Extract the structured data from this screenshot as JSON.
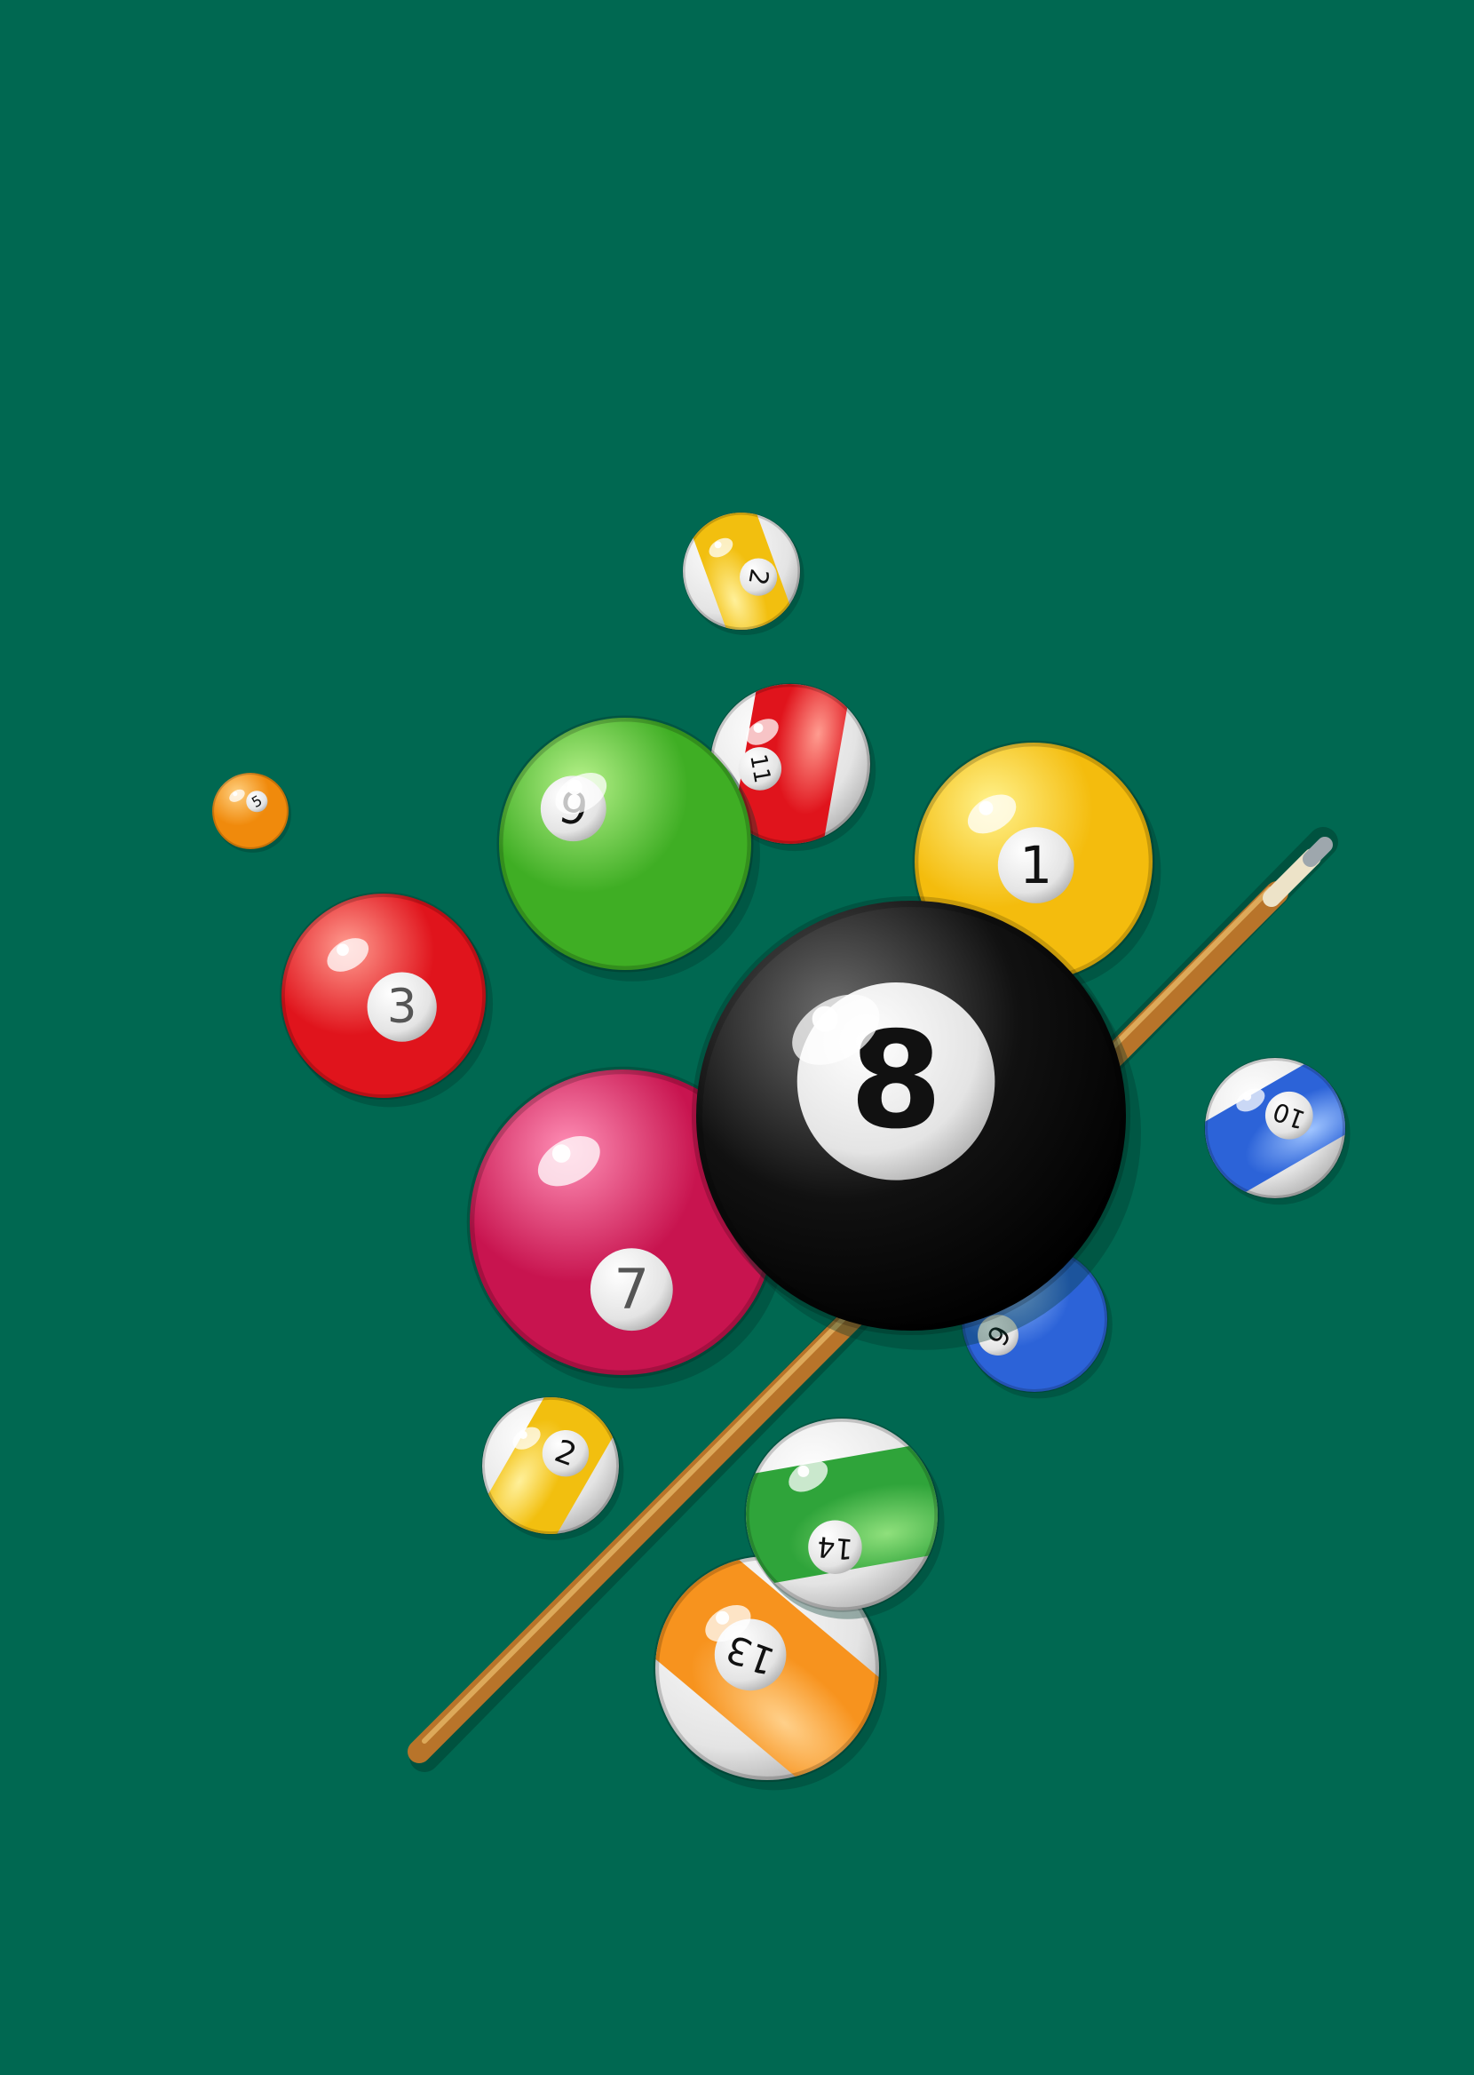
{
  "scene": {
    "background": "#006851",
    "cue": {
      "shaft_color": "#b8742a",
      "ferrule_color": "#ede3c8",
      "tip_color": "#9ea7ad"
    },
    "balls": [
      {
        "id": "ball-13",
        "number": "13",
        "style": "stripe",
        "color": "#f7931e",
        "highlight": "#ffd08a"
      },
      {
        "id": "ball-14",
        "number": "14",
        "style": "stripe",
        "color": "#2fa43a",
        "highlight": "#8fe07c"
      },
      {
        "id": "ball-2-bottom",
        "number": "2",
        "style": "stripe",
        "color": "#f2bf0f",
        "highlight": "#fff09a"
      },
      {
        "id": "ball-6",
        "number": "6",
        "style": "solid",
        "color": "#2c63d8",
        "highlight": "#9fc4ff"
      },
      {
        "id": "ball-7",
        "number": "7",
        "style": "solid",
        "color": "#c8144f",
        "highlight": "#ff8fb6"
      },
      {
        "id": "ball-1",
        "number": "1",
        "style": "solid",
        "color": "#f4bc0d",
        "highlight": "#fff28c"
      },
      {
        "id": "ball-8",
        "number": "8",
        "style": "solid",
        "color": "#111111",
        "highlight": "#6b6b6b"
      },
      {
        "id": "ball-10",
        "number": "10",
        "style": "stripe",
        "color": "#2c63d8",
        "highlight": "#9fc4ff"
      },
      {
        "id": "ball-3",
        "number": "3",
        "style": "solid",
        "color": "#e0141c",
        "highlight": "#ff9c90"
      },
      {
        "id": "ball-11",
        "number": "11",
        "style": "stripe",
        "color": "#e0141c",
        "highlight": "#ff9c90"
      },
      {
        "id": "ball-9",
        "number": "9",
        "style": "solid",
        "color": "#3fae24",
        "highlight": "#b7f28a"
      },
      {
        "id": "ball-2-top",
        "number": "2",
        "style": "stripe",
        "color": "#f2bf0f",
        "highlight": "#fff09a"
      },
      {
        "id": "ball-5",
        "number": "5",
        "style": "solid",
        "color": "#f08a0c",
        "highlight": "#ffd080"
      }
    ]
  }
}
